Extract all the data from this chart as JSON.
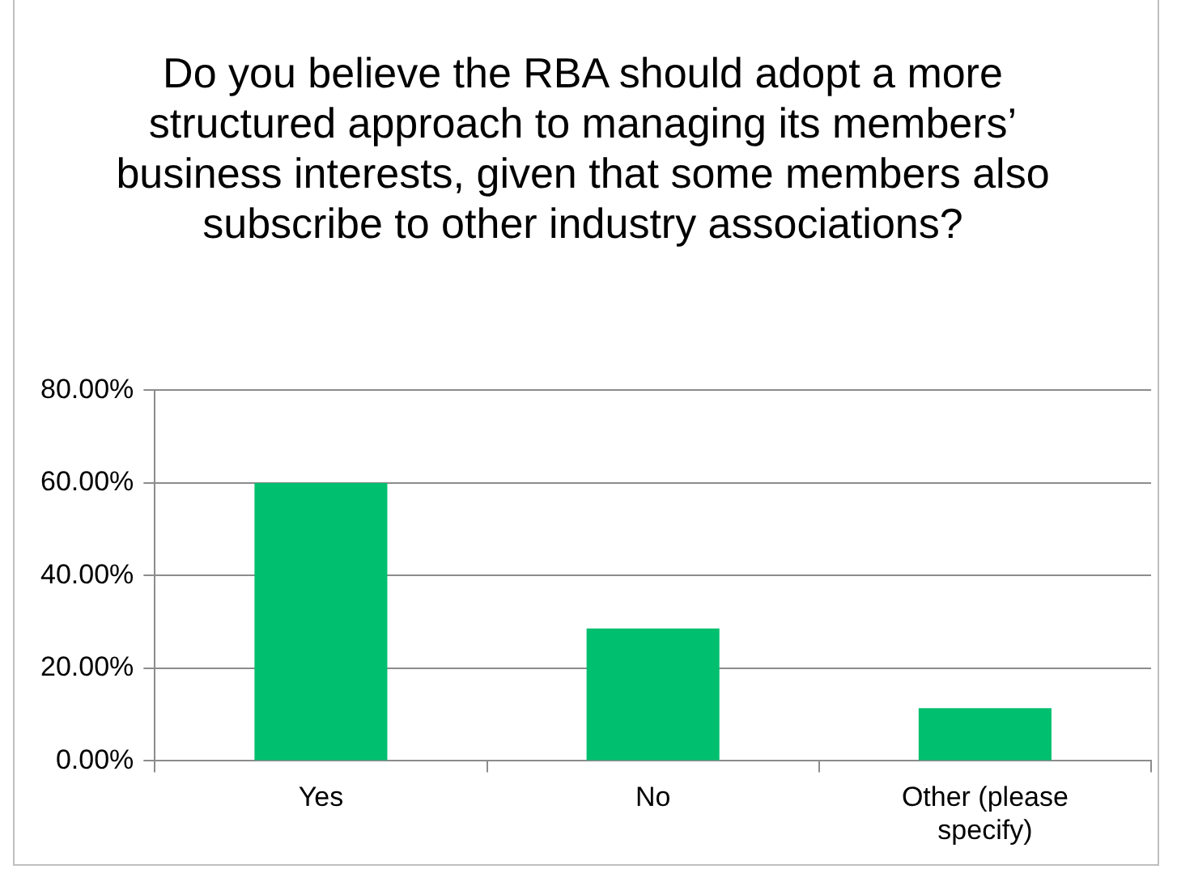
{
  "chart_data": {
    "type": "bar",
    "title": "Do you believe the RBA should adopt a more structured approach to managing its members’ business interests, given that some members also subscribe to other industry associations?",
    "categories": [
      "Yes",
      "No",
      "Other (please specify)"
    ],
    "values": [
      60,
      28.6,
      11.4
    ],
    "color": "#00bf6f",
    "ylim": [
      0,
      80
    ],
    "yticks": [
      {
        "value": 0,
        "label": "0.00%"
      },
      {
        "value": 20,
        "label": "20.00%"
      },
      {
        "value": 40,
        "label": "40.00%"
      },
      {
        "value": 60,
        "label": "60.00%"
      },
      {
        "value": 80,
        "label": "80.00%"
      }
    ],
    "grid": "y",
    "legend": false
  }
}
